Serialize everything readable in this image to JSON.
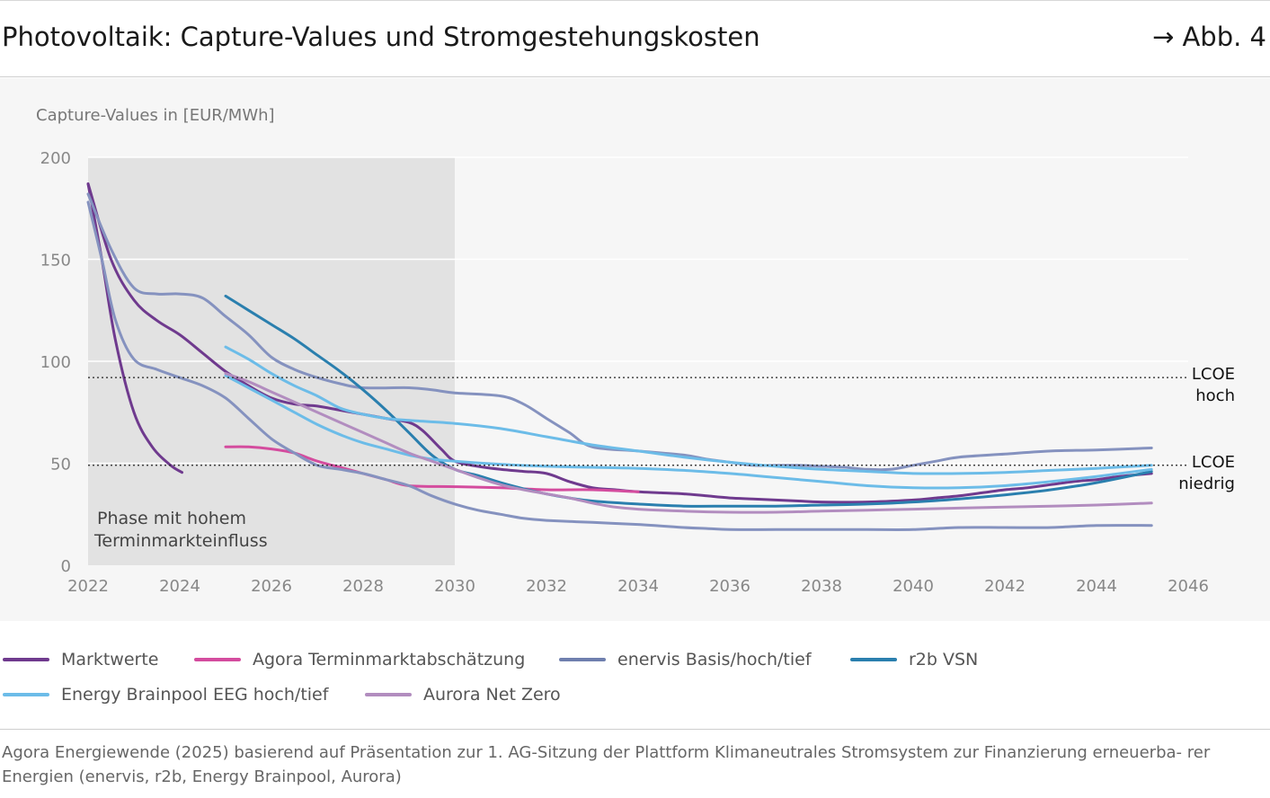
{
  "header": {
    "title": "Photovoltaik: Capture-Values und Stromgestehungskosten",
    "figure_ref": "→ Abb. 4"
  },
  "colors": {
    "marktwerte": "#6f3a8e",
    "agora": "#d44c9e",
    "enervis": "#8592bf",
    "r2b": "#2a7fae",
    "brainpool": "#6cbce8",
    "aurora": "#b28dbf",
    "phase_shade": "#e2e2e2",
    "panel": "#f6f6f6"
  },
  "legend": [
    {
      "label": "Marktwerte",
      "color": "#6f3a8e"
    },
    {
      "label": "Agora Terminmarktabschätzung",
      "color": "#d44c9e"
    },
    {
      "label": "enervis Basis/hoch/tief",
      "color": "#6f7fae"
    },
    {
      "label": "r2b VSN",
      "color": "#2a7fae"
    },
    {
      "label": "Energy Brainpool EEG hoch/tief",
      "color": "#6cbce8"
    },
    {
      "label": "Aurora Net Zero",
      "color": "#b28dbf"
    }
  ],
  "source_text": "Agora Energiewende (2025) basierend auf Präsentation zur 1. AG-Sitzung der Plattform Klimaneutrales Stromsystem zur Finanzierung erneuerba- rer Energien (enervis, r2b, Energy Brainpool, Aurora)",
  "chart_data": {
    "type": "line",
    "title": "Photovoltaik: Capture-Values und Stromgestehungskosten",
    "ylabel": "Capture-Values in [EUR/MWh]",
    "xlabel": "",
    "xlim": [
      2022,
      2046
    ],
    "ylim": [
      0,
      200
    ],
    "xticks": [
      2022,
      2024,
      2026,
      2028,
      2030,
      2032,
      2034,
      2036,
      2038,
      2040,
      2042,
      2044,
      2046
    ],
    "yticks": [
      0,
      50,
      100,
      150,
      200
    ],
    "grid": "horizontal",
    "shaded_region": {
      "x": [
        2022,
        2030
      ],
      "label": [
        "Phase mit hohem",
        "Terminmarkteinfluss"
      ]
    },
    "reference_lines": [
      {
        "y": 92,
        "label": [
          "LCOE",
          "hoch"
        ]
      },
      {
        "y": 49,
        "label": [
          "LCOE",
          "niedrig"
        ]
      }
    ],
    "series": [
      {
        "name": "Marktwerte",
        "color": "#6f3a8e",
        "width": 3,
        "points": [
          [
            2022,
            187
          ],
          [
            2022.3,
            150
          ],
          [
            2022.6,
            110
          ],
          [
            2023,
            75
          ],
          [
            2023.4,
            58
          ],
          [
            2023.8,
            49
          ],
          [
            2024.05,
            45.5
          ]
        ]
      },
      {
        "name": "Marktwerte",
        "color": "#6f3a8e",
        "width": 3,
        "points": [
          [
            2022,
            187
          ],
          [
            2022.5,
            150
          ],
          [
            2023,
            130
          ],
          [
            2023.5,
            120
          ],
          [
            2024,
            113
          ],
          [
            2024.5,
            104
          ],
          [
            2025,
            95
          ],
          [
            2025.5,
            88
          ],
          [
            2026,
            82
          ],
          [
            2026.5,
            79
          ],
          [
            2027,
            78
          ],
          [
            2027.5,
            76
          ],
          [
            2028,
            74
          ],
          [
            2028.5,
            72
          ],
          [
            2029,
            70
          ],
          [
            2029.3,
            66
          ],
          [
            2029.7,
            57
          ],
          [
            2030,
            51
          ],
          [
            2030.5,
            48.5
          ],
          [
            2031,
            47
          ],
          [
            2031.5,
            46
          ],
          [
            2032,
            45
          ],
          [
            2032.5,
            41
          ],
          [
            2033,
            38
          ],
          [
            2033.5,
            37
          ],
          [
            2034,
            36
          ],
          [
            2034.5,
            35.5
          ],
          [
            2035,
            35
          ],
          [
            2035.5,
            34
          ],
          [
            2036,
            33
          ],
          [
            2036.5,
            32.5
          ],
          [
            2037,
            32
          ],
          [
            2037.5,
            31.5
          ],
          [
            2038,
            31
          ],
          [
            2039,
            31
          ],
          [
            2040,
            32
          ],
          [
            2040.5,
            33
          ],
          [
            2041,
            34
          ],
          [
            2041.5,
            35.5
          ],
          [
            2042,
            37
          ],
          [
            2042.5,
            38
          ],
          [
            2043,
            39.5
          ],
          [
            2043.5,
            41
          ],
          [
            2044,
            42
          ],
          [
            2044.5,
            43.5
          ],
          [
            2045.2,
            45
          ]
        ]
      },
      {
        "name": "Agora Terminmarktabschätzung",
        "color": "#d44c9e",
        "width": 3,
        "points": [
          [
            2025,
            58
          ],
          [
            2025.5,
            58
          ],
          [
            2026,
            57
          ],
          [
            2026.5,
            55
          ],
          [
            2027,
            51
          ],
          [
            2027.5,
            48
          ],
          [
            2028,
            45
          ],
          [
            2028.5,
            42
          ],
          [
            2029,
            39
          ],
          [
            2030,
            38.5
          ],
          [
            2031,
            38
          ],
          [
            2032,
            37
          ],
          [
            2033,
            37
          ],
          [
            2034,
            36
          ]
        ]
      },
      {
        "name": "enervis Basis/hoch/tief",
        "color": "#8592bf",
        "width": 3,
        "points": [
          [
            2022,
            182
          ],
          [
            2022.5,
            155
          ],
          [
            2023,
            136
          ],
          [
            2023.5,
            133
          ],
          [
            2024,
            133
          ],
          [
            2024.5,
            131
          ],
          [
            2025,
            122
          ],
          [
            2025.5,
            113
          ],
          [
            2026,
            102
          ],
          [
            2026.5,
            96
          ],
          [
            2027,
            92
          ],
          [
            2027.5,
            89
          ],
          [
            2028,
            87
          ],
          [
            2029,
            87
          ],
          [
            2029.5,
            86
          ],
          [
            2030,
            84.5
          ],
          [
            2031,
            83
          ],
          [
            2031.5,
            79
          ],
          [
            2032,
            72
          ],
          [
            2032.5,
            65
          ],
          [
            2033,
            58
          ],
          [
            2034,
            56
          ],
          [
            2035,
            54
          ],
          [
            2035.5,
            52
          ],
          [
            2036,
            50.5
          ],
          [
            2036.5,
            49
          ],
          [
            2037,
            49
          ],
          [
            2037.5,
            49
          ],
          [
            2038,
            48.5
          ],
          [
            2038.5,
            48
          ],
          [
            2039,
            47
          ],
          [
            2039.5,
            47
          ],
          [
            2040,
            49
          ],
          [
            2040.5,
            51
          ],
          [
            2041,
            53
          ],
          [
            2042,
            54.5
          ],
          [
            2043,
            56
          ],
          [
            2044,
            56.5
          ],
          [
            2045.2,
            57.5
          ]
        ]
      },
      {
        "name": "enervis Basis/hoch/tief",
        "color": "#8592bf",
        "width": 3,
        "points": [
          [
            2022,
            178
          ],
          [
            2022.3,
            150
          ],
          [
            2022.6,
            120
          ],
          [
            2023,
            101
          ],
          [
            2023.5,
            96
          ],
          [
            2024,
            92
          ],
          [
            2024.5,
            88
          ],
          [
            2025,
            82
          ],
          [
            2025.5,
            72
          ],
          [
            2026,
            62
          ],
          [
            2026.5,
            55
          ],
          [
            2027,
            49
          ],
          [
            2027.5,
            47
          ],
          [
            2028,
            45
          ],
          [
            2028.5,
            42
          ],
          [
            2029,
            39
          ],
          [
            2029.5,
            34
          ],
          [
            2030,
            30
          ],
          [
            2030.5,
            27
          ],
          [
            2031,
            25
          ],
          [
            2031.5,
            23
          ],
          [
            2032,
            22
          ],
          [
            2033,
            21
          ],
          [
            2034,
            20
          ],
          [
            2035,
            18.5
          ],
          [
            2035.5,
            18
          ],
          [
            2036,
            17.5
          ],
          [
            2037,
            17.5
          ],
          [
            2038,
            17.5
          ],
          [
            2039,
            17.5
          ],
          [
            2040,
            17.5
          ],
          [
            2041,
            18.5
          ],
          [
            2042,
            18.5
          ],
          [
            2043,
            18.5
          ],
          [
            2044,
            19.5
          ],
          [
            2045.2,
            19.5
          ]
        ]
      },
      {
        "name": "r2b VSN",
        "color": "#2a7fae",
        "width": 3,
        "points": [
          [
            2025,
            132
          ],
          [
            2025.5,
            125
          ],
          [
            2026,
            118
          ],
          [
            2026.5,
            111
          ],
          [
            2027,
            103
          ],
          [
            2027.5,
            95
          ],
          [
            2028,
            86
          ],
          [
            2028.5,
            76
          ],
          [
            2029,
            65
          ],
          [
            2029.5,
            54
          ],
          [
            2030,
            47
          ],
          [
            2030.5,
            44
          ],
          [
            2031,
            40.5
          ],
          [
            2031.5,
            37.5
          ],
          [
            2032,
            35
          ],
          [
            2032.5,
            33
          ],
          [
            2033,
            31.5
          ],
          [
            2034,
            30
          ],
          [
            2035,
            29
          ],
          [
            2036,
            29
          ],
          [
            2037,
            29
          ],
          [
            2038,
            29.5
          ],
          [
            2039,
            30
          ],
          [
            2040,
            31
          ],
          [
            2041,
            32.5
          ],
          [
            2042,
            34.5
          ],
          [
            2043,
            37
          ],
          [
            2044,
            40.5
          ],
          [
            2045.2,
            46
          ]
        ]
      },
      {
        "name": "Energy Brainpool EEG hoch/tief",
        "color": "#6cbce8",
        "width": 3,
        "points": [
          [
            2025,
            107
          ],
          [
            2025.5,
            101
          ],
          [
            2026,
            94
          ],
          [
            2026.5,
            88
          ],
          [
            2027,
            83
          ],
          [
            2027.5,
            77
          ],
          [
            2028,
            74
          ],
          [
            2028.5,
            72
          ],
          [
            2029,
            71
          ],
          [
            2030,
            69.5
          ],
          [
            2031,
            67
          ],
          [
            2032,
            63
          ],
          [
            2033,
            59
          ],
          [
            2034,
            56
          ],
          [
            2035,
            53
          ],
          [
            2036,
            50.5
          ],
          [
            2037,
            48.5
          ],
          [
            2038,
            47
          ],
          [
            2039,
            46
          ],
          [
            2040,
            45
          ],
          [
            2041,
            45
          ],
          [
            2042,
            45.5
          ],
          [
            2043,
            46.5
          ],
          [
            2044,
            47.5
          ],
          [
            2045.2,
            49
          ]
        ]
      },
      {
        "name": "Energy Brainpool EEG hoch/tief",
        "color": "#6cbce8",
        "width": 3,
        "points": [
          [
            2025,
            93
          ],
          [
            2025.5,
            87
          ],
          [
            2026,
            81
          ],
          [
            2026.5,
            75
          ],
          [
            2027,
            69
          ],
          [
            2027.5,
            64
          ],
          [
            2028,
            60
          ],
          [
            2028.5,
            57
          ],
          [
            2029,
            54
          ],
          [
            2029.5,
            52
          ],
          [
            2030,
            51
          ],
          [
            2031,
            49.5
          ],
          [
            2032,
            48.5
          ],
          [
            2033,
            48
          ],
          [
            2034,
            47.5
          ],
          [
            2035,
            46.5
          ],
          [
            2036,
            45
          ],
          [
            2037,
            43
          ],
          [
            2038,
            41
          ],
          [
            2039,
            39
          ],
          [
            2040,
            38
          ],
          [
            2041,
            38
          ],
          [
            2042,
            39
          ],
          [
            2043,
            41
          ],
          [
            2044,
            43.5
          ],
          [
            2045.2,
            47
          ]
        ]
      },
      {
        "name": "Aurora Net Zero",
        "color": "#b28dbf",
        "width": 3,
        "points": [
          [
            2025,
            94
          ],
          [
            2025.5,
            90
          ],
          [
            2026,
            85
          ],
          [
            2026.5,
            80
          ],
          [
            2027,
            75
          ],
          [
            2027.5,
            70
          ],
          [
            2028,
            65
          ],
          [
            2028.5,
            60
          ],
          [
            2029,
            55
          ],
          [
            2029.5,
            51
          ],
          [
            2030,
            47
          ],
          [
            2030.5,
            43
          ],
          [
            2031,
            39.5
          ],
          [
            2031.5,
            37
          ],
          [
            2032,
            35
          ],
          [
            2032.5,
            33
          ],
          [
            2033,
            30.5
          ],
          [
            2033.5,
            28.5
          ],
          [
            2034,
            27.5
          ],
          [
            2035,
            26.5
          ],
          [
            2036,
            26
          ],
          [
            2037,
            26
          ],
          [
            2038,
            26.5
          ],
          [
            2039,
            27
          ],
          [
            2040,
            27.5
          ],
          [
            2041,
            28
          ],
          [
            2042,
            28.5
          ],
          [
            2043,
            29
          ],
          [
            2044,
            29.5
          ],
          [
            2045.2,
            30.5
          ]
        ]
      }
    ]
  }
}
